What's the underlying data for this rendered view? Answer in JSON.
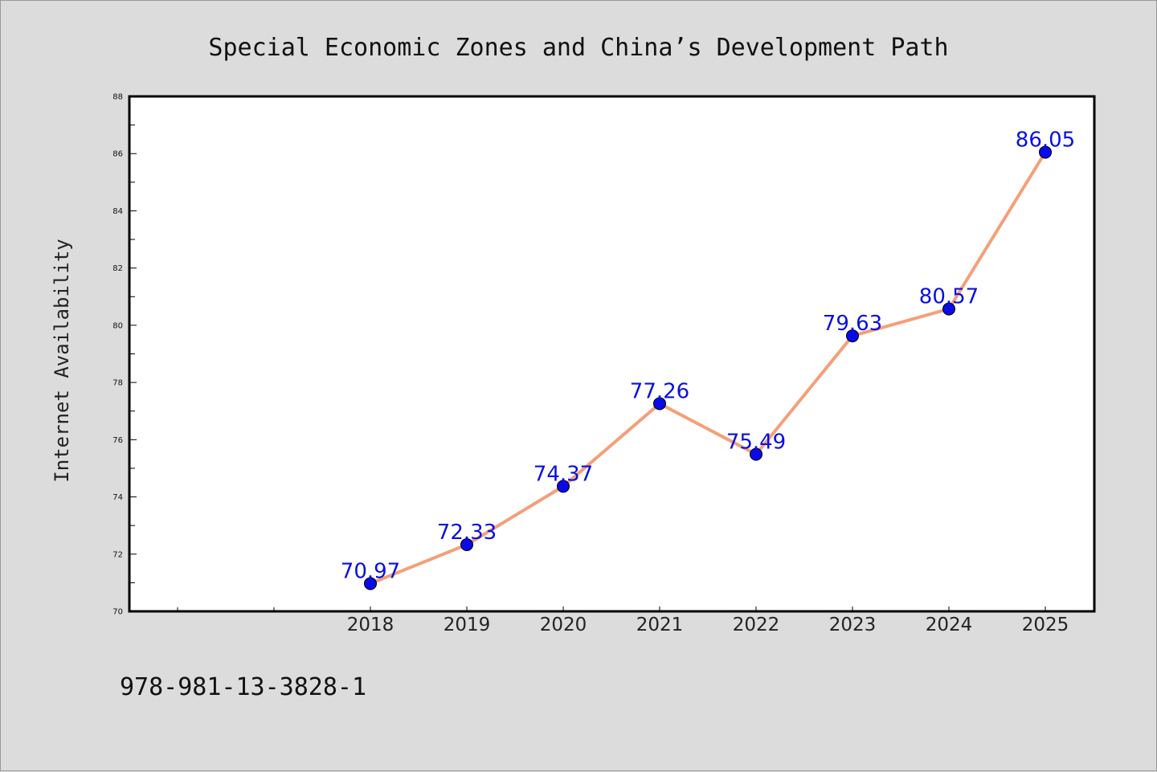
{
  "chart_data": {
    "type": "line",
    "title": "Special Economic Zones and China’s Development Path",
    "xlabel": "",
    "ylabel": "Internet Availability",
    "ylim": [
      70,
      88
    ],
    "y_ticks": [
      "70",
      "72",
      "74",
      "76",
      "78",
      "80",
      "82",
      "84",
      "86",
      "88"
    ],
    "categories": [
      "2018",
      "2019",
      "2020",
      "2021",
      "2022",
      "2023",
      "2024",
      "2025"
    ],
    "values": [
      70.97,
      72.33,
      74.37,
      77.26,
      75.49,
      79.63,
      80.57,
      86.05
    ],
    "data_labels": [
      "70.97",
      "72.33",
      "74.37",
      "77.26",
      "75.49",
      "79.63",
      "80.57",
      "86.05"
    ],
    "grid": false,
    "legend": "none",
    "line_color": "#f4a07a",
    "marker_color": "#0a0ae8",
    "label_color": "#0a10e0"
  },
  "footer": {
    "isbn": "978-981-13-3828-1"
  }
}
